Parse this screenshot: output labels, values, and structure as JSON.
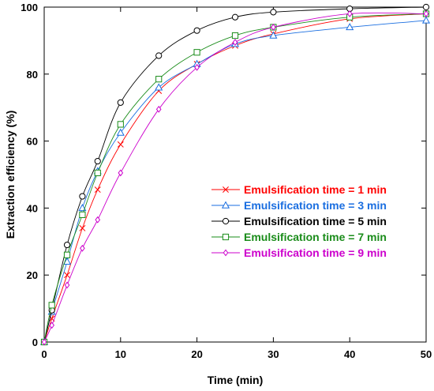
{
  "chart_data": {
    "type": "line",
    "title": "",
    "xlabel": "Time (min)",
    "ylabel": "Extraction efficiency (%)",
    "xlim": [
      0,
      50
    ],
    "ylim": [
      0,
      100
    ],
    "x_ticks": [
      0,
      10,
      20,
      30,
      40,
      50
    ],
    "y_ticks": [
      0,
      20,
      40,
      60,
      80,
      100
    ],
    "grid": false,
    "legend_position": "center-right",
    "x": [
      0,
      1,
      3,
      5,
      7,
      10,
      15,
      20,
      25,
      30,
      40,
      50
    ],
    "series": [
      {
        "name": "Emulsification time = 1 min",
        "color": "#ff0000",
        "marker": "x",
        "values": [
          0,
          7,
          20,
          34,
          45.5,
          59,
          75,
          83,
          88.5,
          92,
          96.5,
          98
        ]
      },
      {
        "name": "Emulsification time = 3 min",
        "color": "#1a6ee0",
        "marker": "triangle",
        "values": [
          0,
          9,
          24,
          40,
          51,
          62.5,
          76,
          83,
          89,
          91.5,
          94,
          96
        ]
      },
      {
        "name": "Emulsification time = 5 min",
        "color": "#000000",
        "marker": "circle",
        "values": [
          0,
          9.5,
          29,
          43.5,
          54,
          71.5,
          85.5,
          93,
          97,
          98.5,
          99.5,
          100
        ]
      },
      {
        "name": "Emulsification time = 7 min",
        "color": "#1a8c1a",
        "marker": "square",
        "values": [
          0,
          11,
          26,
          38,
          50.5,
          65,
          78.5,
          86.5,
          91.5,
          94,
          97,
          98
        ]
      },
      {
        "name": "Emulsification time = 9 min",
        "color": "#cc00cc",
        "marker": "diamond",
        "values": [
          0,
          5,
          17,
          28,
          36.5,
          50.5,
          69.5,
          82,
          89.5,
          94,
          98,
          98
        ]
      }
    ]
  }
}
